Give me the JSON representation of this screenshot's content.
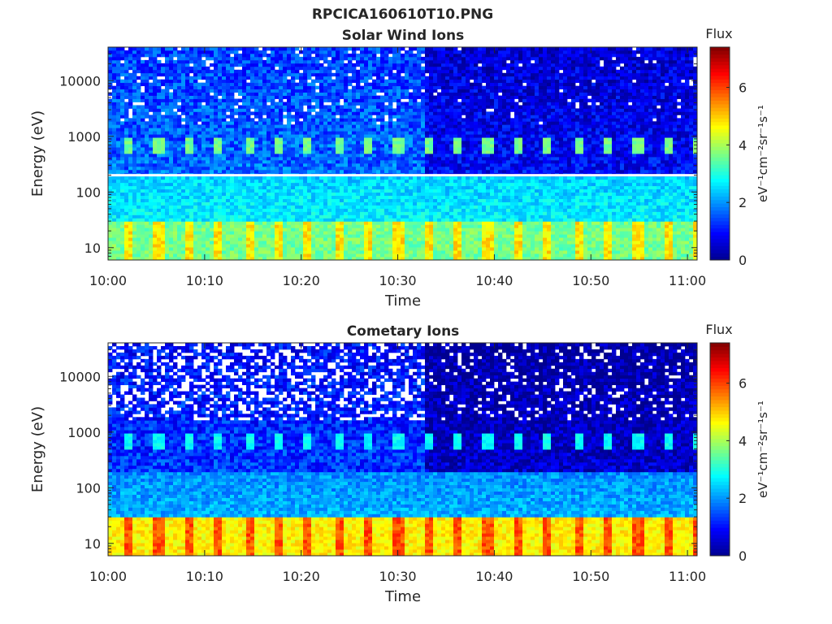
{
  "figure": {
    "title": "RPCICA160610T10.PNG"
  },
  "colormap": [
    "#00008f",
    "#0000ff",
    "#0080ff",
    "#00ffff",
    "#80ff80",
    "#ffff00",
    "#ff8000",
    "#ff0000",
    "#800000"
  ],
  "chart_data": [
    {
      "type": "heatmap",
      "title": "Solar Wind Ions",
      "xlabel": "Time",
      "ylabel": "Energy (eV)",
      "x_ticks": [
        "10:00",
        "10:10",
        "10:20",
        "10:30",
        "10:40",
        "10:50",
        "11:00"
      ],
      "x_range": [
        "10:00",
        "11:01"
      ],
      "y_scale": "log",
      "y_ticks": [
        10,
        100,
        1000,
        10000
      ],
      "y_tick_labels": [
        "10",
        "100",
        "1000",
        "10000"
      ],
      "y_range": [
        6,
        40000
      ],
      "colorbar": {
        "label": "Flux",
        "units": "eV⁻¹cm⁻²sr⁻¹s⁻¹",
        "ticks": [
          "0",
          "2",
          "4",
          "6"
        ],
        "range": [
          0,
          7.4
        ]
      },
      "data": {
        "low_energy_band_eV": [
          6,
          30
        ],
        "low_energy_flux": 3.9,
        "mid_energy_flux": 2.7,
        "beam_energy_eV": 700,
        "beam_flux": 3.6,
        "high_energy_flux": 1.4,
        "regime_change_time": "10:33",
        "pulse_period_min": 3.1,
        "dead_channel_energy_eV": 200
      }
    },
    {
      "type": "heatmap",
      "title": "Cometary Ions",
      "xlabel": "Time",
      "ylabel": "Energy (eV)",
      "x_ticks": [
        "10:00",
        "10:10",
        "10:20",
        "10:30",
        "10:40",
        "10:50",
        "11:00"
      ],
      "x_range": [
        "10:00",
        "11:01"
      ],
      "y_scale": "log",
      "y_ticks": [
        10,
        100,
        1000,
        10000
      ],
      "y_tick_labels": [
        "10",
        "100",
        "1000",
        "10000"
      ],
      "y_range": [
        6,
        40000
      ],
      "colorbar": {
        "label": "Flux",
        "units": "eV⁻¹cm⁻²sr⁻¹s⁻¹",
        "ticks": [
          "0",
          "2",
          "4",
          "6"
        ],
        "range": [
          0,
          7.4
        ]
      },
      "data": {
        "low_energy_band_eV": [
          6,
          30
        ],
        "low_energy_flux": 5.0,
        "mid_energy_flux": 2.2,
        "beam_energy_eV": 700,
        "beam_flux": 2.8,
        "high_energy_flux": 1.0,
        "regime_change_time": "10:33",
        "pulse_period_min": 3.1
      }
    }
  ]
}
